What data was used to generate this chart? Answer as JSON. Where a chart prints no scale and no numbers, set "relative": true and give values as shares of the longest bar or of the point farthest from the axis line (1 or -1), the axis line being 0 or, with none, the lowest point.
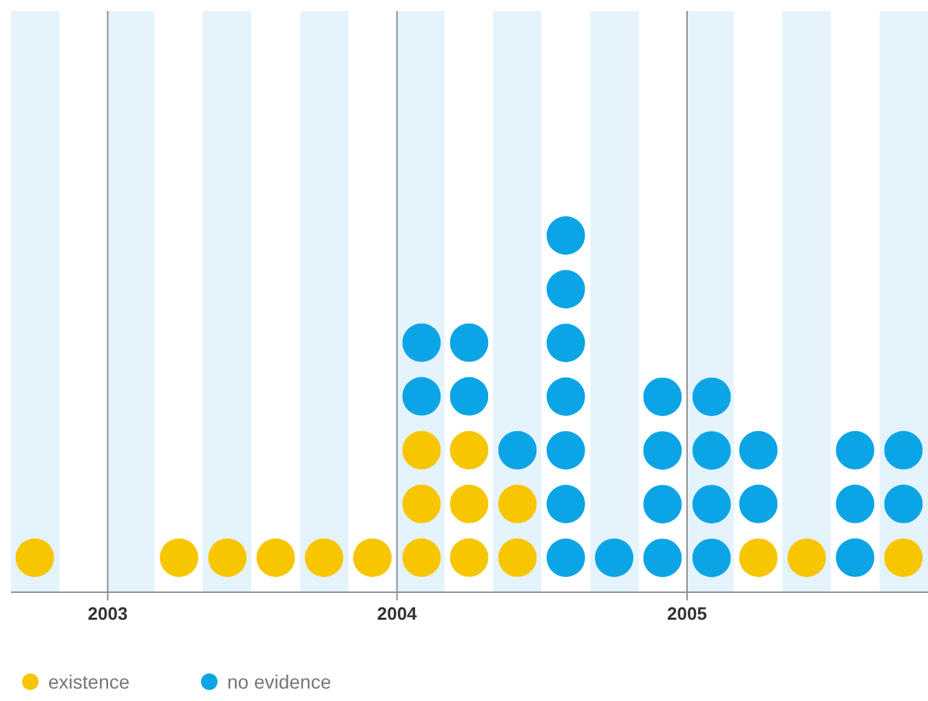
{
  "chart_data": {
    "type": "bar",
    "stacked": true,
    "relative": true,
    "legend": "bottom left",
    "grid": "x",
    "x": [
      "2002-10",
      "2002-12",
      "2003-02",
      "2003-04",
      "2003-06",
      "2003-08",
      "2003-10",
      "2003-12",
      "2004-02",
      "2004-04",
      "2004-06",
      "2004-08",
      "2004-10",
      "2004-12",
      "2005-02",
      "2005-04",
      "2005-06",
      "2005-08",
      "2005-10"
    ],
    "xlim": [
      "2002-09",
      "2005-11"
    ],
    "xticks": [
      {
        "value": "2003-01",
        "label": "2003"
      },
      {
        "value": "2004-01",
        "label": "2004"
      },
      {
        "value": "2005-01",
        "label": "2005"
      }
    ],
    "bands": [
      {
        "axis": "x",
        "from": "2002-09",
        "to": "2002-11",
        "color": "#e4f3fc"
      },
      {
        "axis": "x",
        "from": "2003-01",
        "to": "2003-03",
        "color": "#e4f3fc"
      },
      {
        "axis": "x",
        "from": "2003-05",
        "to": "2003-07",
        "color": "#e4f3fc"
      },
      {
        "axis": "x",
        "from": "2003-09",
        "to": "2003-11",
        "color": "#e4f3fc"
      },
      {
        "axis": "x",
        "from": "2004-01",
        "to": "2004-03",
        "color": "#e4f3fc"
      },
      {
        "axis": "x",
        "from": "2004-05",
        "to": "2004-07",
        "color": "#e4f3fc"
      },
      {
        "axis": "x",
        "from": "2004-09",
        "to": "2004-11",
        "color": "#e4f3fc"
      },
      {
        "axis": "x",
        "from": "2005-01",
        "to": "2005-03",
        "color": "#e4f3fc"
      },
      {
        "axis": "x",
        "from": "2005-05",
        "to": "2005-07",
        "color": "#e4f3fc"
      },
      {
        "axis": "x",
        "from": "2005-09",
        "to": "2005-11",
        "color": "#e4f3fc"
      }
    ],
    "series": [
      {
        "name": "existence",
        "color": "#f7c600",
        "values": [
          0.143,
          0,
          0,
          0.143,
          0.143,
          0.143,
          0.143,
          0.143,
          0.429,
          0.429,
          0.286,
          0,
          0,
          0,
          0,
          0.143,
          0.143,
          0,
          0.143
        ]
      },
      {
        "name": "no evidence",
        "color": "#0ba5e6",
        "values": [
          0,
          0,
          0,
          0,
          0,
          0,
          0,
          0,
          0.286,
          0.286,
          0.143,
          1,
          0.143,
          0.571,
          0.571,
          0.286,
          0,
          0.429,
          0.286
        ]
      }
    ]
  }
}
